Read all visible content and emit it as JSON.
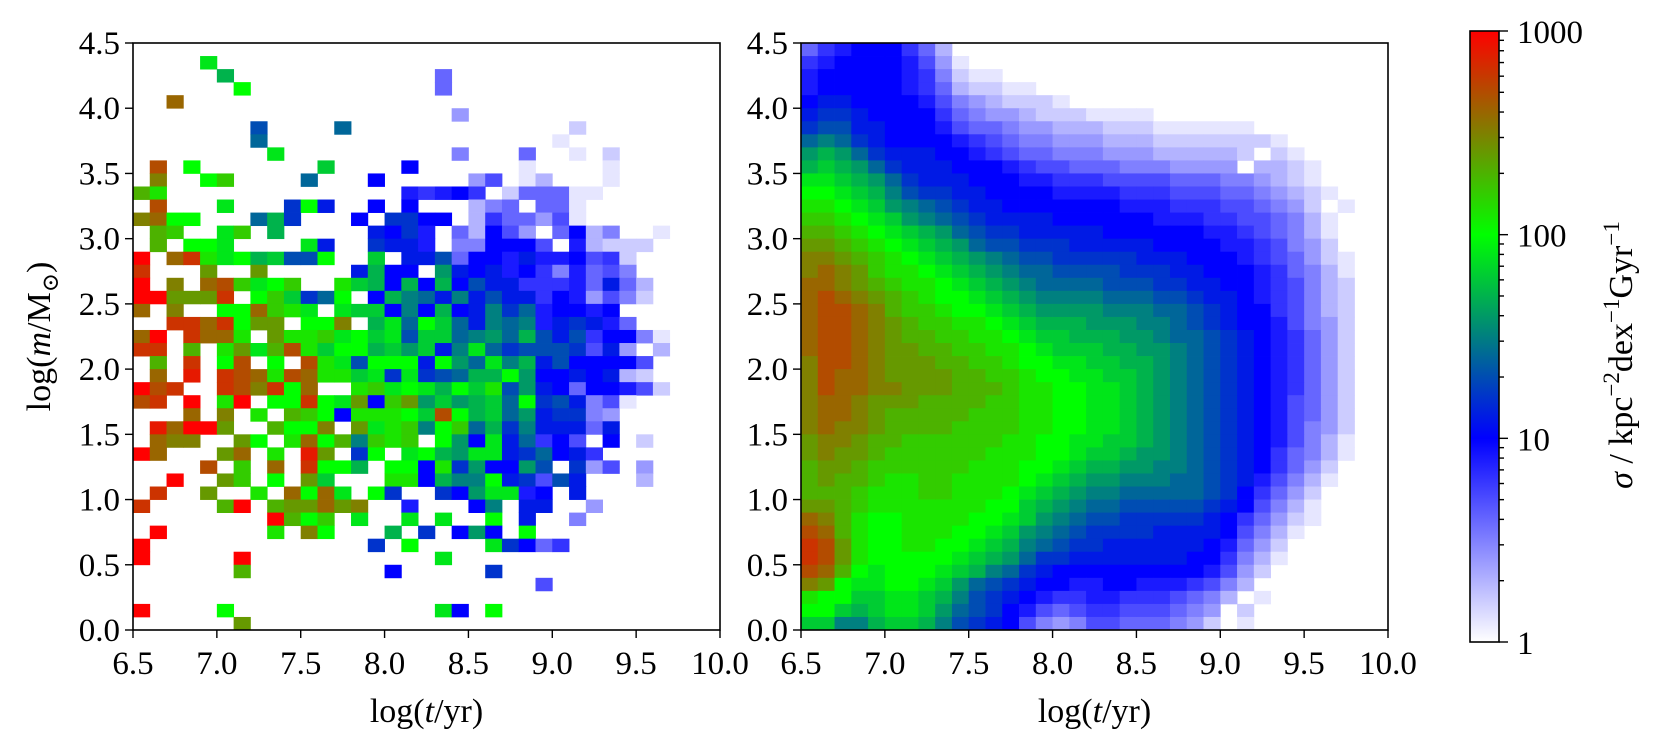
{
  "encoding": {
    "alphabet": "0123456789ABCDEFGHIJKLMNOPQRSTU",
    "step_log10": 0.1,
    "empty": "."
  },
  "chart_data": [
    {
      "type": "heatmap",
      "panel": "left",
      "xlabel_parts": [
        {
          "t": "log("
        },
        {
          "t": "t",
          "italic": true
        },
        {
          "t": "/yr)"
        }
      ],
      "ylabel_parts": [
        {
          "t": "log("
        },
        {
          "t": "m",
          "italic": true
        },
        {
          "t": "/M"
        },
        {
          "t": "⊙",
          "sub": true
        },
        {
          "t": ")"
        }
      ],
      "xlim": [
        6.5,
        10.0
      ],
      "ylim": [
        0.0,
        4.5
      ],
      "bin_x": 0.1,
      "bin_y": 0.1,
      "xticks": [
        "6.5",
        "7.0",
        "7.5",
        "8.0",
        "8.5",
        "9.0",
        "9.5",
        "10.0"
      ],
      "yticks": [
        "0.0",
        "0.5",
        "1.0",
        "1.5",
        "2.0",
        "2.5",
        "3.0",
        "3.5",
        "4.0",
        "4.5"
      ],
      "rows_top_to_bottom": [
        "",
        "....J",
        ".....H............6",
        "......K...........6",
        "..Q",
        "...................4",
        ".......D....E.............2",
        ".......E.................1",
        "........J..........5...6..1.2",
        ".R.K.......I....A......1....1",
        ".P..KM....E...A.....47.13...1",
        "NL..............989A8.266611",
        ".R...J...CKB..A.A...356.661",
        "PQKK...EHC...A.CCAA.3866471",
        ".NM..JM.H.....BAC9.63A74.6A35..1",
        ".N.KKJ....JB..CBB9.55AAA7.93222",
        "U.QSLJKHIDDK..I.BBD6AA9B99A782",
        "S...O..O.....BHAA.GBAB9A859675",
        "U.P.QRMJKM..LIHAHAHADBB88896B63",
        "UUOOOS.KMICEK.AHFEBFBDBB8A94752",
        "Q.P..KKQMLJ.JIIAFAHABFCE9AA9A",
        "..SSQSKOO.KKP.HJEKIEBFEF9BCB96",
        "QU.SQQL.OLLMJKIJDIIEFGEHDBD8AA51",
        "SS.N.LOJNRLIKKHIGIBFJECDDDC7B4.3",
        ".N.S.KR.K.RLJDKKKBKGEJFHBDAAAA7",
        ".Q.T.SRQLRQLLIJCJCDEHHKGAABAB32",
        "URS..SRPSKQ..LMJKJHKILDGBA6AA972",
        "RS.U.LU.KKSKJOAMOGIGHIEKCDB571",
        "...Q.P.L.NMKALLLKIRKHIEGBCC54",
        ".TQUUO..NKKP.OJLMFKMEHCFBBB6B",
        ".QPP..OK.LQKNFMLM.KGAJBE8A7.A.2",
        "UQ...OQ.L.TO.CK.JKHGJJBCEAB8",
        "....R.M.Q.SKKH.KKALCGAAGD.C47.4",
        "..U..OM.K.OI...LLAHFFKBC7DB...3",
        ".S..O..L.QKQJ.KC..CAGJJ9A.B",
        "S....NU.NOOQOP..9...AF.BB..4",
        "........UNKM.J..J.J..K.B..5",
        ".U......L.PK...H.C.AGA.K",
        "U.............C.K....JCA68",
        "U.....U...........J",
        "......N........A.....C",
        "........................7",
        "",
        "U....K............JA.K",
        "......O"
      ]
    },
    {
      "type": "heatmap",
      "panel": "right",
      "xlabel_parts": [
        {
          "t": "log("
        },
        {
          "t": "t",
          "italic": true
        },
        {
          "t": "/yr)"
        }
      ],
      "xlim": [
        6.5,
        10.0
      ],
      "ylim": [
        0.0,
        4.5
      ],
      "bin_x": 0.1,
      "bin_y": 0.1,
      "xticks": [
        "6.5",
        "7.0",
        "7.5",
        "8.0",
        "8.5",
        "9.0",
        "9.5",
        "10.0"
      ],
      "yticks": [
        "0.0",
        "0.5",
        "1.0",
        "1.5",
        "2.0",
        "2.5",
        "3.0",
        "3.5",
        "4.0",
        "4.5"
      ],
      "rows_top_to_bottom": [
        "689AAA863",
        "89AAAA9741",
        "9AAAAA985211",
        "9AAAAA98632211",
        "ABBAAAA975432221",
        "BCCBAAAA8654432221111",
        "CDDBBAAA9766544333222111111",
        "EFECBAAAA98765544433322222221",
        "GHGECBBBAA98766555444333332 21",
        "HIHGECBBBAAA98776665554444 3321",
        "JJIHGECBBBAAA998887777666554321",
        "KKJIHFDCCBBAAAA99998887776654321",
        "LLKJIGFEDCBBAAAAAAA999888776542 1",
        "MMLKJIGFEDCBBBBAAAAAA99988776531",
        "NNMLKJIHGEDCCBBBBBAAAAAA99876531",
        "OONMLKJIHGEDDCCCBBBBBAAAA9987542",
        "PPONMLKJIHGFEDDCCCCCBBBAAA9876421",
        "PQPOMLLKJIHGFEEDDDDCCCBBAAA986531",
        "QQPONMLLKJIHGFEEEEDDDCCBBAA987532",
        "QRQPONMLKKJIHGFFFFEEEDDCBBA987532",
        "QRRQPNMMLKKJIHGGGGFFFEEDCBAA87532",
        "QRRQPONMMLLKJIHHHGGGFFEDCBAA97542",
        "QRRQPONNMMLLKJIIHHHGGFEEDCBA98642",
        "QRRQPOONNMMLLKJIIIHHGGFEDCBA98642",
        "PRRQPOOONNMMLKKJJIIHHGFEDCBA98642",
        "PRQQPOOOONNMMLKKJJIIHGFEDCBA98642",
        "PRQQPPOOONNNMLLKKJJIHGFEDCBA98642",
        "PQQPOOONNNNMMLLKKJJIHGFEDCBA97642",
        "PQQPONNNNNMMMLLKKJJIHGFEDCBA97642",
        "PQPPONNNNMMMMLLKKJJIHGFEDCBA97542",
        "OPPONNMMMMMMLLKKJJIIHGFEDCBA97531",
        "OPOONMMMMMMLLLKKJIIHGGFEDCBA86531",
        "NOONMMMMMMLLLKKJIHHGGFFEDCBA8642",
        "NONNMLLMMLLLLKJIHGGFFFEEDCB97531",
        "NNNMLLLMMLLLKJIHGFFEEEEEDCA8642",
        "OONMLLLLLLLKKIHGFEEDDDDDCBA7531",
        "QPNLKKLLLLKKJIGFEDDCCCCCBA86421",
        "RQNLKKLLLKKJIGFEDCCCCBBBBA7531",
        "SROLKKLLKKJIHFEDCCBBBBBBA9642",
        "SROLKKKKKJIHGECCBBBBBBBAA8531",
        "RQNKJKKKJIHFECBAAAAAAAAA9742",
        "POKJJKKJIGEDCBAA99AA9998753",
        "LKKIIJJIHFDCBA988998887653 1",
        "KKIHIJJIGEDCA976788777654 2",
        "IIFFHIIHFDCBA754577666542 1"
      ]
    }
  ],
  "colorbar": {
    "scale": "log",
    "range": [
      1,
      1000
    ],
    "colors": [
      "#ffffff",
      "#0000ff",
      "#00ff00",
      "#ff0000"
    ],
    "ticks": [
      "1",
      "10",
      "100",
      "1000"
    ],
    "label_parts": [
      {
        "t": "σ",
        "italic": true
      },
      {
        "t": " / kpc"
      },
      {
        "t": "−2",
        "sup": true
      },
      {
        "t": "dex"
      },
      {
        "t": "−1",
        "sup": true
      },
      {
        "t": "Gyr"
      },
      {
        "t": "−1",
        "sup": true
      }
    ]
  }
}
